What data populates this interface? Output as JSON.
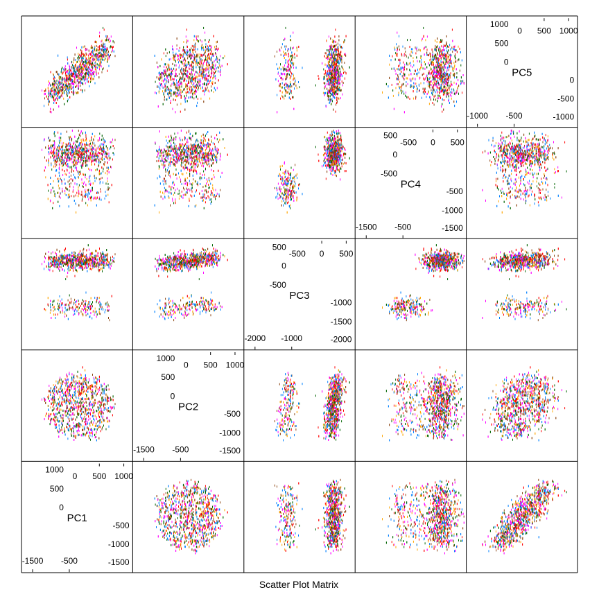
{
  "chart_data": {
    "type": "scatter",
    "title": "Scatter Plot Matrix",
    "variables": [
      "PC1",
      "PC2",
      "PC3",
      "PC4",
      "PC5"
    ],
    "colors": [
      "#FF00FF",
      "#0080FF",
      "#006400",
      "#FF0000",
      "#FFA500",
      "#8B4513"
    ],
    "diagonal": [
      {
        "name": "PC1",
        "ticks_high": [
          "1000",
          "500",
          "0",
          "0",
          "500",
          "1000"
        ],
        "ticks_low": [
          "-1500",
          "-500",
          "-500",
          "-1000",
          "-1500"
        ]
      },
      {
        "name": "PC2",
        "ticks_high": [
          "1000",
          "500",
          "0",
          "0",
          "500",
          "1000"
        ],
        "ticks_low": [
          "-1500",
          "-500",
          "-500",
          "-1000",
          "-1500"
        ]
      },
      {
        "name": "PC3",
        "ticks_high": [
          "500",
          "0",
          "-500",
          "-500",
          "0",
          "500"
        ],
        "ticks_low": [
          "-2000",
          "-1000",
          "-1000",
          "-1500",
          "-2000"
        ]
      },
      {
        "name": "PC4",
        "ticks_high": [
          "500",
          "0",
          "-500",
          "-500",
          "0",
          "500"
        ],
        "ticks_low": [
          "-1500",
          "-500",
          "-500",
          "-1000",
          "-1500"
        ]
      },
      {
        "name": "PC5",
        "ticks_high": [
          "1000",
          "500",
          "0",
          "0",
          "500",
          "1000"
        ],
        "ticks_low": [
          "-1000",
          "-500",
          "0",
          "-500",
          "-1000"
        ]
      }
    ],
    "ranges": {
      "PC1": [
        -1700,
        1200
      ],
      "PC2": [
        -1700,
        1300
      ],
      "PC3": [
        -2400,
        700
      ],
      "PC4": [
        -1800,
        650
      ],
      "PC5": [
        -1100,
        1100
      ]
    }
  }
}
